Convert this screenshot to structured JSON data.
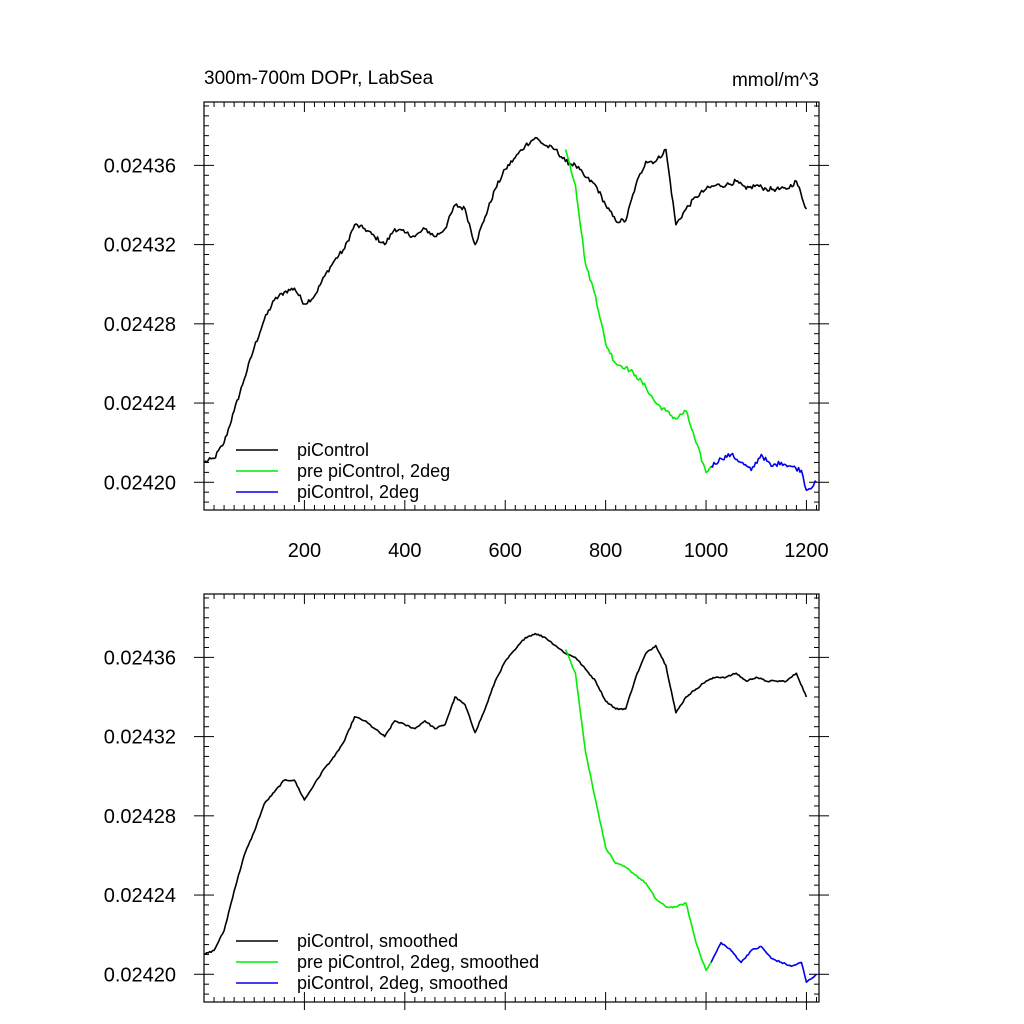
{
  "chart_data": [
    {
      "type": "line",
      "title": "300m-700m DOPr, LabSea",
      "units": "mmol/m^3",
      "xlim": [
        0,
        1225
      ],
      "ylim": [
        0.024186,
        0.024392
      ],
      "xticks": [
        {
          "value": 200,
          "label": "200"
        },
        {
          "value": 400,
          "label": "400"
        },
        {
          "value": 600,
          "label": "600"
        },
        {
          "value": 800,
          "label": "800"
        },
        {
          "value": 1000,
          "label": "1000"
        },
        {
          "value": 1200,
          "label": "1200"
        }
      ],
      "yticks": [
        {
          "value": 0.0242,
          "label": "0.02420"
        },
        {
          "value": 0.02424,
          "label": "0.02424"
        },
        {
          "value": 0.02428,
          "label": "0.02428"
        },
        {
          "value": 0.02432,
          "label": "0.02432"
        },
        {
          "value": 0.02436,
          "label": "0.02436"
        }
      ],
      "legend_position": "bottom-left",
      "series": [
        {
          "name": "piControl",
          "color": "#000000",
          "noise": 1.2e-06,
          "x": [
            0,
            20,
            40,
            60,
            80,
            100,
            120,
            140,
            160,
            180,
            200,
            220,
            240,
            260,
            280,
            300,
            320,
            340,
            360,
            380,
            400,
            420,
            440,
            460,
            480,
            500,
            520,
            540,
            560,
            580,
            600,
            620,
            640,
            660,
            680,
            700,
            720,
            740,
            760,
            780,
            800,
            820,
            840,
            860,
            880,
            900,
            920,
            940,
            960,
            980,
            1000,
            1020,
            1040,
            1060,
            1080,
            1100,
            1120,
            1140,
            1160,
            1180,
            1200
          ],
          "y": [
            0.02421,
            0.024212,
            0.02422,
            0.024236,
            0.024252,
            0.024268,
            0.024282,
            0.024292,
            0.024296,
            0.024298,
            0.02429,
            0.024294,
            0.024304,
            0.024312,
            0.024318,
            0.02433,
            0.024328,
            0.024324,
            0.02432,
            0.024328,
            0.024326,
            0.024324,
            0.024328,
            0.024324,
            0.024328,
            0.02434,
            0.024338,
            0.02432,
            0.024334,
            0.024348,
            0.024358,
            0.024364,
            0.02437,
            0.024374,
            0.02437,
            0.024368,
            0.024362,
            0.02436,
            0.024354,
            0.02435,
            0.02434,
            0.024332,
            0.024332,
            0.02435,
            0.024362,
            0.024362,
            0.024368,
            0.02433,
            0.024338,
            0.024344,
            0.024348,
            0.02435,
            0.02435,
            0.024352,
            0.024348,
            0.02435,
            0.024348,
            0.024348,
            0.024348,
            0.024352,
            0.024338
          ]
        },
        {
          "name": "pre piControl, 2deg",
          "color": "#00ee00",
          "noise": 1.2e-06,
          "x": [
            720,
            740,
            760,
            780,
            800,
            820,
            840,
            860,
            880,
            900,
            920,
            940,
            960,
            980,
            1000,
            1010
          ],
          "y": [
            0.024368,
            0.02435,
            0.02431,
            0.024294,
            0.02427,
            0.02426,
            0.024258,
            0.024254,
            0.024248,
            0.02424,
            0.024236,
            0.024232,
            0.024236,
            0.02422,
            0.024205,
            0.024208
          ]
        },
        {
          "name": "piControl, 2deg",
          "color": "#0000ee",
          "noise": 1.2e-06,
          "x": [
            1010,
            1030,
            1050,
            1070,
            1090,
            1110,
            1130,
            1150,
            1170,
            1190,
            1200,
            1220
          ],
          "y": [
            0.024208,
            0.024212,
            0.024214,
            0.02421,
            0.024206,
            0.024214,
            0.024208,
            0.02421,
            0.024208,
            0.024206,
            0.024196,
            0.0242
          ]
        }
      ]
    },
    {
      "type": "line",
      "xlim": [
        0,
        1225
      ],
      "ylim": [
        0.024186,
        0.024392
      ],
      "xticks": [
        {
          "value": 200,
          "label": ""
        },
        {
          "value": 400,
          "label": ""
        },
        {
          "value": 600,
          "label": ""
        },
        {
          "value": 800,
          "label": ""
        },
        {
          "value": 1000,
          "label": ""
        },
        {
          "value": 1200,
          "label": ""
        }
      ],
      "yticks": [
        {
          "value": 0.0242,
          "label": "0.02420"
        },
        {
          "value": 0.02424,
          "label": "0.02424"
        },
        {
          "value": 0.02428,
          "label": "0.02428"
        },
        {
          "value": 0.02432,
          "label": "0.02432"
        },
        {
          "value": 0.02436,
          "label": "0.02436"
        }
      ],
      "legend_position": "bottom-left",
      "series": [
        {
          "name": "piControl, smoothed",
          "color": "#000000",
          "noise": 4e-07,
          "x": [
            0,
            20,
            40,
            60,
            80,
            100,
            120,
            140,
            160,
            180,
            200,
            220,
            240,
            260,
            280,
            300,
            320,
            340,
            360,
            380,
            400,
            420,
            440,
            460,
            480,
            500,
            520,
            540,
            560,
            580,
            600,
            620,
            640,
            660,
            680,
            700,
            720,
            740,
            760,
            780,
            800,
            820,
            840,
            860,
            880,
            900,
            920,
            940,
            960,
            980,
            1000,
            1020,
            1040,
            1060,
            1080,
            1100,
            1120,
            1140,
            1160,
            1180,
            1200
          ],
          "y": [
            0.02421,
            0.024212,
            0.024222,
            0.024242,
            0.02426,
            0.024272,
            0.024286,
            0.024292,
            0.024298,
            0.024298,
            0.024288,
            0.024296,
            0.024304,
            0.02431,
            0.024318,
            0.02433,
            0.024328,
            0.024324,
            0.02432,
            0.024328,
            0.024326,
            0.024324,
            0.024328,
            0.024324,
            0.024326,
            0.02434,
            0.024336,
            0.024322,
            0.024334,
            0.024348,
            0.024358,
            0.024364,
            0.02437,
            0.024372,
            0.02437,
            0.024366,
            0.024362,
            0.02436,
            0.024354,
            0.024348,
            0.024338,
            0.024334,
            0.024334,
            0.02435,
            0.024362,
            0.024366,
            0.024356,
            0.024332,
            0.02434,
            0.024344,
            0.024348,
            0.02435,
            0.02435,
            0.024352,
            0.024348,
            0.02435,
            0.024348,
            0.024348,
            0.024348,
            0.024352,
            0.02434
          ]
        },
        {
          "name": "pre piControl, 2deg, smoothed",
          "color": "#00ee00",
          "noise": 4e-07,
          "x": [
            720,
            740,
            760,
            780,
            800,
            820,
            840,
            860,
            880,
            900,
            920,
            940,
            960,
            980,
            1000,
            1010
          ],
          "y": [
            0.024364,
            0.024352,
            0.024312,
            0.024288,
            0.024264,
            0.024256,
            0.024254,
            0.02425,
            0.024246,
            0.024238,
            0.024234,
            0.024234,
            0.024236,
            0.024216,
            0.024202,
            0.024206
          ]
        },
        {
          "name": "piControl, 2deg, smoothed",
          "color": "#0000ee",
          "noise": 4e-07,
          "x": [
            1010,
            1030,
            1050,
            1070,
            1090,
            1110,
            1130,
            1150,
            1170,
            1190,
            1200,
            1220
          ],
          "y": [
            0.024206,
            0.024216,
            0.024212,
            0.024206,
            0.024212,
            0.024214,
            0.024208,
            0.024206,
            0.024204,
            0.024206,
            0.024196,
            0.0242
          ]
        }
      ]
    }
  ]
}
